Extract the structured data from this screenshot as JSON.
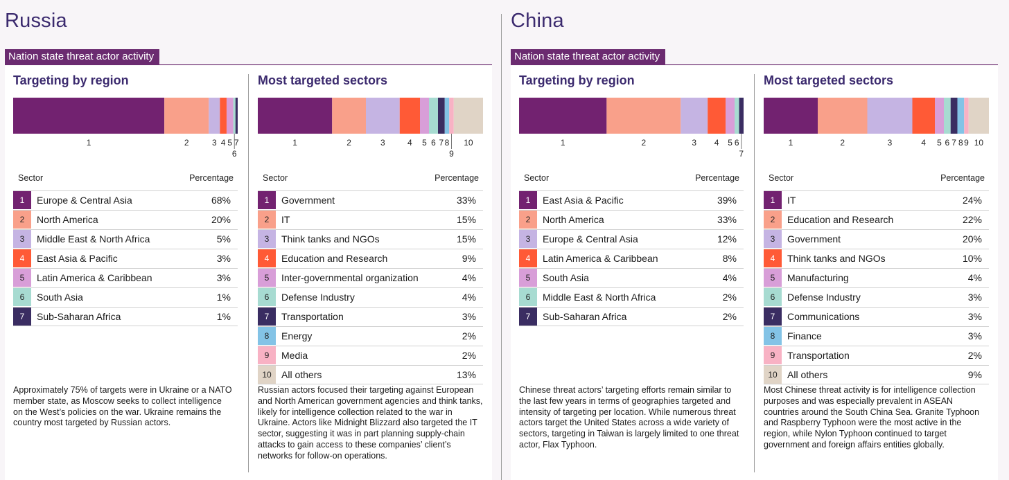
{
  "palette": [
    "#722270",
    "#f9a08a",
    "#c5b4e3",
    "#ff5a36",
    "#d89ed8",
    "#a7dbd1",
    "#3a2d62",
    "#83c3e6",
    "#f8b2c4",
    "#e0d4c6"
  ],
  "countries": [
    {
      "name": "Russia",
      "banner": "Nation state threat actor activity",
      "region": {
        "heading": "Targeting by region",
        "col_sector": "Sector",
        "col_pct": "Percentage",
        "rows": [
          {
            "n": "1",
            "label": "Europe & Central Asia",
            "pct": "68%"
          },
          {
            "n": "2",
            "label": "North America",
            "pct": "20%"
          },
          {
            "n": "3",
            "label": "Middle East & North Africa",
            "pct": "5%"
          },
          {
            "n": "4",
            "label": "East Asia & Pacific",
            "pct": "3%"
          },
          {
            "n": "5",
            "label": "Latin America & Caribbean",
            "pct": "3%"
          },
          {
            "n": "6",
            "label": "South Asia",
            "pct": "1%"
          },
          {
            "n": "7",
            "label": "Sub-Saharan Africa",
            "pct": "1%"
          }
        ],
        "note": "Approximately 75% of targets were in Ukraine or a NATO member state, as Moscow seeks to collect intelligence on the West’s policies on the war. Ukraine remains the country most targeted by Russian actors."
      },
      "sectors": {
        "heading": "Most targeted sectors",
        "col_sector": "Sector",
        "col_pct": "Percentage",
        "rows": [
          {
            "n": "1",
            "label": "Government",
            "pct": "33%"
          },
          {
            "n": "2",
            "label": "IT",
            "pct": "15%"
          },
          {
            "n": "3",
            "label": "Think tanks and NGOs",
            "pct": "15%"
          },
          {
            "n": "4",
            "label": "Education and Research",
            "pct": "9%"
          },
          {
            "n": "5",
            "label": "Inter-governmental organization",
            "pct": "4%"
          },
          {
            "n": "6",
            "label": "Defense Industry",
            "pct": "4%"
          },
          {
            "n": "7",
            "label": "Transportation",
            "pct": "3%"
          },
          {
            "n": "8",
            "label": "Energy",
            "pct": "2%"
          },
          {
            "n": "9",
            "label": "Media",
            "pct": "2%"
          },
          {
            "n": "10",
            "label": "All others",
            "pct": "13%"
          }
        ],
        "note": "Russian actors focused their targeting against European and North American government agencies and think tanks, likely for intelligence collection related to the war in Ukraine. Actors like Midnight Blizzard also targeted the IT sector, suggesting it was in part planning supply-chain attacks to gain access to these companies’ client’s networks for follow-on operations."
      }
    },
    {
      "name": "China",
      "banner": "Nation state threat actor activity",
      "region": {
        "heading": "Targeting by region",
        "col_sector": "Sector",
        "col_pct": "Percentage",
        "rows": [
          {
            "n": "1",
            "label": "East Asia & Pacific",
            "pct": "39%"
          },
          {
            "n": "2",
            "label": "North America",
            "pct": "33%"
          },
          {
            "n": "3",
            "label": "Europe & Central Asia",
            "pct": "12%"
          },
          {
            "n": "4",
            "label": "Latin America & Caribbean",
            "pct": "8%"
          },
          {
            "n": "5",
            "label": "South Asia",
            "pct": "4%"
          },
          {
            "n": "6",
            "label": "Middle East & North Africa",
            "pct": "2%"
          },
          {
            "n": "7",
            "label": "Sub-Saharan Africa",
            "pct": "2%"
          }
        ],
        "note": "Chinese threat actors’ targeting efforts remain similar to the last few years in terms of geographies targeted and intensity of targeting per location. While numerous threat actors target the United States across a wide variety of sectors, targeting in Taiwan is largely limited to one threat actor, Flax Typhoon."
      },
      "sectors": {
        "heading": "Most targeted sectors",
        "col_sector": "Sector",
        "col_pct": "Percentage",
        "rows": [
          {
            "n": "1",
            "label": "IT",
            "pct": "24%"
          },
          {
            "n": "2",
            "label": "Education and Research",
            "pct": "22%"
          },
          {
            "n": "3",
            "label": "Government",
            "pct": "20%"
          },
          {
            "n": "4",
            "label": "Think tanks and NGOs",
            "pct": "10%"
          },
          {
            "n": "5",
            "label": "Manufacturing",
            "pct": "4%"
          },
          {
            "n": "6",
            "label": "Defense Industry",
            "pct": "3%"
          },
          {
            "n": "7",
            "label": "Communications",
            "pct": "3%"
          },
          {
            "n": "8",
            "label": "Finance",
            "pct": "3%"
          },
          {
            "n": "9",
            "label": "Transportation",
            "pct": "2%"
          },
          {
            "n": "10",
            "label": "All others",
            "pct": "9%"
          }
        ],
        "note": "Most Chinese threat activity is for intelligence collection purposes and was especially prevalent in ASEAN countries around the South China Sea. Granite Typhoon and Raspberry Typhoon were the most active in the region, while Nylon Typhoon continued to target government and foreign affairs entities globally."
      }
    }
  ],
  "chart_data": [
    {
      "type": "bar",
      "title": "Targeting by region",
      "categories": [
        "1",
        "2",
        "3",
        "4",
        "5",
        "6",
        "7"
      ],
      "values": [
        68,
        20,
        5,
        3,
        3,
        1,
        1
      ]
    },
    {
      "type": "bar",
      "title": "Most targeted sectors",
      "categories": [
        "1",
        "2",
        "3",
        "4",
        "5",
        "6",
        "7",
        "8",
        "9",
        "10"
      ],
      "values": [
        33,
        15,
        15,
        9,
        4,
        4,
        3,
        2,
        2,
        13
      ]
    },
    {
      "type": "bar",
      "title": "Targeting by region",
      "categories": [
        "1",
        "2",
        "3",
        "4",
        "5",
        "6",
        "7"
      ],
      "values": [
        39,
        33,
        12,
        8,
        4,
        2,
        2
      ]
    },
    {
      "type": "bar",
      "title": "Most targeted sectors",
      "categories": [
        "1",
        "2",
        "3",
        "4",
        "5",
        "6",
        "7",
        "8",
        "9",
        "10"
      ],
      "values": [
        24,
        22,
        20,
        10,
        4,
        3,
        3,
        3,
        2,
        9
      ]
    }
  ]
}
